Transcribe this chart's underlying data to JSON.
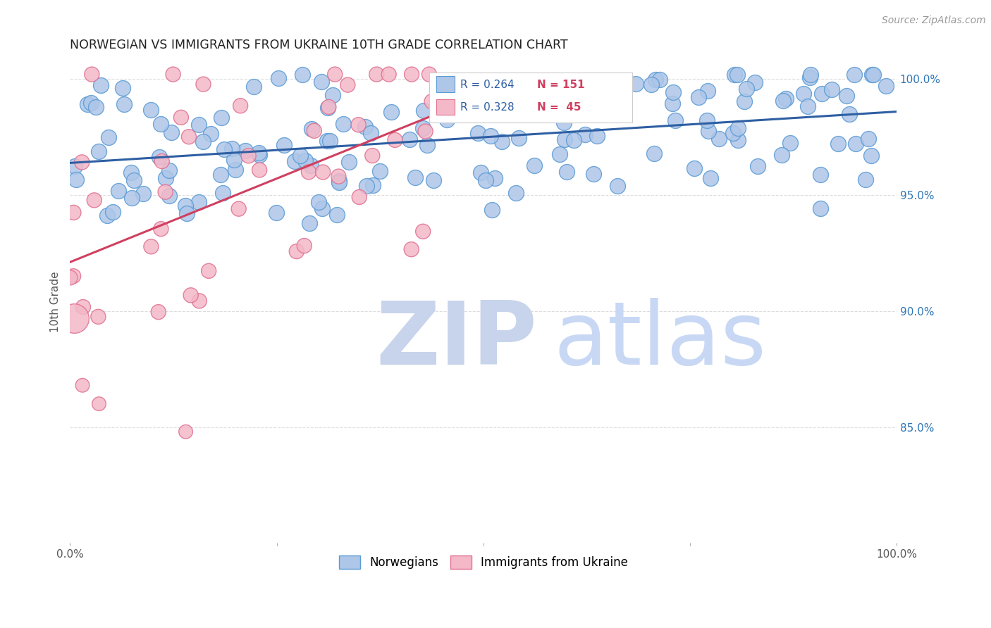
{
  "title": "NORWEGIAN VS IMMIGRANTS FROM UKRAINE 10TH GRADE CORRELATION CHART",
  "source": "Source: ZipAtlas.com",
  "ylabel": "10th Grade",
  "xlim": [
    0.0,
    1.0
  ],
  "ylim": [
    0.8,
    1.008
  ],
  "yticks": [
    0.85,
    0.9,
    0.95,
    1.0
  ],
  "ytick_labels": [
    "85.0%",
    "90.0%",
    "95.0%",
    "100.0%"
  ],
  "norwegian_color": "#aec6e8",
  "norwegian_edge": "#5b9bd5",
  "ukraine_color": "#f4b8c8",
  "ukraine_edge": "#e07090",
  "trend_norwegian_color": "#2e5fa3",
  "trend_ukraine_color": "#d04060",
  "watermark_zip_color": "#c8d8f0",
  "watermark_atlas_color": "#c8d8f0",
  "background_color": "#ffffff",
  "grid_color": "#dddddd",
  "title_color": "#222222",
  "axis_label_color": "#555555",
  "legend_r_color": "#2e5fa3",
  "legend_n_color": "#d04060",
  "right_axis_color": "#2e75b6"
}
